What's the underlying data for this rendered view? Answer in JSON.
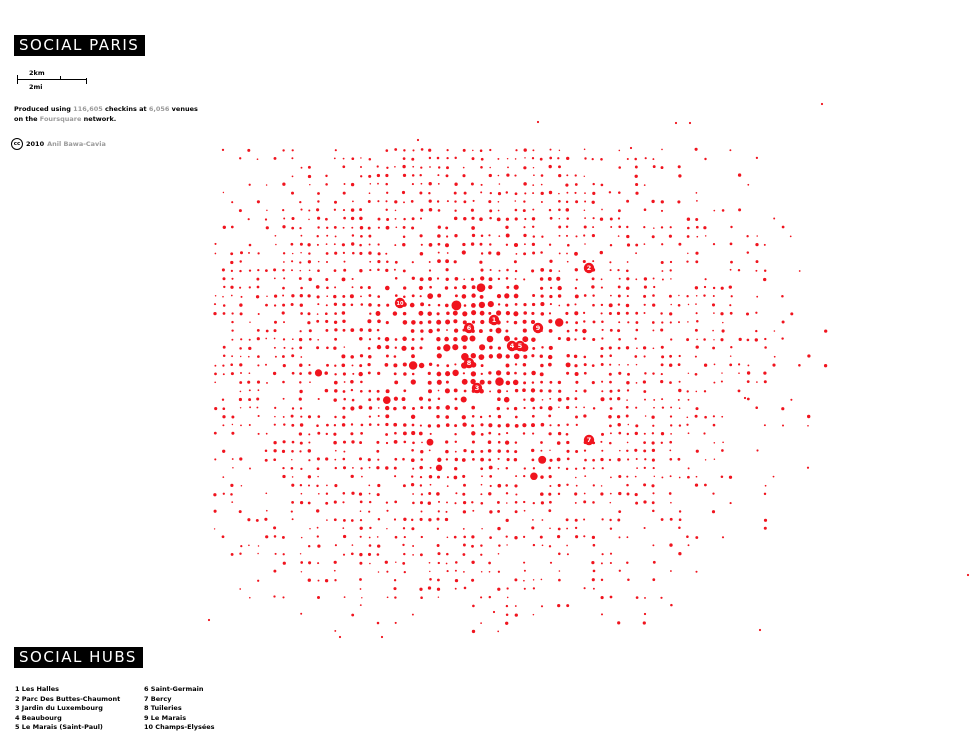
{
  "title": "SOCIAL PARIS",
  "scale": {
    "km_label": "2km",
    "mi_label": "2mi"
  },
  "info": {
    "prefix": "Produced using ",
    "checkins": "116,605",
    "middle": " checkins at ",
    "venues": "6,056",
    "suffix": " venues",
    "line2_prefix": "on the ",
    "network": "Foursquare",
    "line2_suffix": " network."
  },
  "credit": {
    "cc": "cc",
    "year": "2010",
    "author": "Anil Bawa-Cavia"
  },
  "hubs_title": "SOCIAL HUBS",
  "hubs_col1": [
    "1 Les Halles",
    "2 Parc Des Buttes-Chaumont",
    "3 Jardin du Luxembourg",
    "4 Beaubourg",
    "5 Le Marais (Saint-Paul)"
  ],
  "hubs_col2": [
    "6 Saint-Germain",
    "7 Bercy",
    "8 Tuileries",
    "9 Le Marais",
    "10 Champs-Elysées"
  ],
  "hub_markers": [
    "1",
    "2",
    "3",
    "4",
    "5",
    "6",
    "7",
    "8",
    "9",
    "10"
  ],
  "colors": {
    "dot": "#f0141e",
    "label_bg": "#000000",
    "label_fg": "#ffffff",
    "muted": "#9a9a9a"
  },
  "icons": {
    "cc": "creative-commons-icon"
  }
}
